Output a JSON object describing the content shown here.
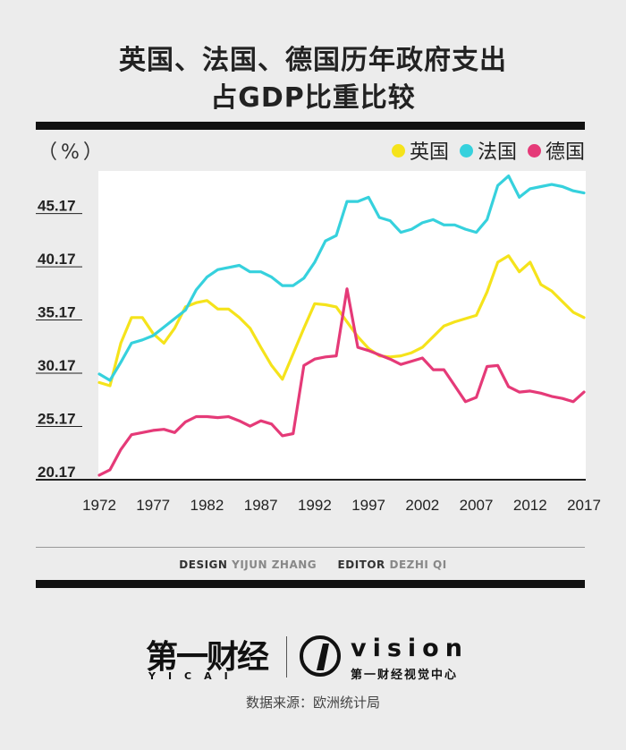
{
  "title_line1": "英国、法国、德国历年政府支出",
  "title_line2": "占GDP比重比较",
  "unit_label": "（%）",
  "credits": {
    "design_label": "DESIGN",
    "design_name": "YIJUN ZHANG",
    "editor_label": "EDITOR",
    "editor_name": "DEZHI QI"
  },
  "logo": {
    "yicai_cn": "第一财经",
    "yicai_en": "YICAI",
    "vision": "vision",
    "vision_cn": "第一财经视觉中心"
  },
  "source": "数据来源：欧洲统计局",
  "colors": {
    "uk": "#f5e31b",
    "fr": "#36d1dd",
    "de": "#e53a78"
  },
  "chart_data": {
    "type": "line",
    "title": "英国、法国、德国历年政府支出占GDP比重比较",
    "ylabel": "（%）",
    "xlabel": "",
    "xlim": [
      1972,
      2017
    ],
    "ylim": [
      20.17,
      49.17
    ],
    "x_ticks": [
      1972,
      1977,
      1982,
      1987,
      1992,
      1997,
      2002,
      2007,
      2012,
      2017
    ],
    "y_ticks": [
      "20.17",
      "25.17",
      "30.17",
      "35.17",
      "40.17",
      "45.17"
    ],
    "legend_position": "top-right",
    "series": [
      {
        "name": "英国",
        "key": "uk",
        "points": [
          [
            1972,
            29.3
          ],
          [
            1973,
            29.0
          ],
          [
            1974,
            33.0
          ],
          [
            1975,
            35.4
          ],
          [
            1976,
            35.4
          ],
          [
            1977,
            33.9
          ],
          [
            1978,
            33.0
          ],
          [
            1979,
            34.4
          ],
          [
            1980,
            36.4
          ],
          [
            1981,
            36.8
          ],
          [
            1982,
            37.0
          ],
          [
            1983,
            36.2
          ],
          [
            1984,
            36.2
          ],
          [
            1985,
            35.4
          ],
          [
            1986,
            34.4
          ],
          [
            1987,
            32.6
          ],
          [
            1988,
            30.9
          ],
          [
            1989,
            29.6
          ],
          [
            1990,
            32.0
          ],
          [
            1991,
            34.4
          ],
          [
            1992,
            36.7
          ],
          [
            1993,
            36.6
          ],
          [
            1994,
            36.4
          ],
          [
            1995,
            35.0
          ],
          [
            1996,
            33.6
          ],
          [
            1997,
            32.5
          ],
          [
            1998,
            31.8
          ],
          [
            1999,
            31.7
          ],
          [
            2000,
            31.8
          ],
          [
            2001,
            32.1
          ],
          [
            2002,
            32.6
          ],
          [
            2003,
            33.6
          ],
          [
            2004,
            34.6
          ],
          [
            2005,
            35.0
          ],
          [
            2006,
            35.3
          ],
          [
            2007,
            35.6
          ],
          [
            2008,
            37.8
          ],
          [
            2009,
            40.6
          ],
          [
            2010,
            41.2
          ],
          [
            2011,
            39.7
          ],
          [
            2012,
            40.6
          ],
          [
            2013,
            38.5
          ],
          [
            2014,
            37.9
          ],
          [
            2015,
            36.9
          ],
          [
            2016,
            35.9
          ],
          [
            2017,
            35.4
          ]
        ]
      },
      {
        "name": "法国",
        "key": "fr",
        "points": [
          [
            1972,
            30.1
          ],
          [
            1973,
            29.5
          ],
          [
            1974,
            31.2
          ],
          [
            1975,
            33.0
          ],
          [
            1976,
            33.3
          ],
          [
            1977,
            33.7
          ],
          [
            1978,
            34.5
          ],
          [
            1979,
            35.3
          ],
          [
            1980,
            36.1
          ],
          [
            1981,
            38.0
          ],
          [
            1982,
            39.2
          ],
          [
            1983,
            39.9
          ],
          [
            1984,
            40.1
          ],
          [
            1985,
            40.3
          ],
          [
            1986,
            39.7
          ],
          [
            1987,
            39.7
          ],
          [
            1988,
            39.2
          ],
          [
            1989,
            38.4
          ],
          [
            1990,
            38.4
          ],
          [
            1991,
            39.1
          ],
          [
            1992,
            40.6
          ],
          [
            1993,
            42.6
          ],
          [
            1994,
            43.1
          ],
          [
            1995,
            46.3
          ],
          [
            1996,
            46.3
          ],
          [
            1997,
            46.7
          ],
          [
            1998,
            44.8
          ],
          [
            1999,
            44.5
          ],
          [
            2000,
            43.4
          ],
          [
            2001,
            43.7
          ],
          [
            2002,
            44.3
          ],
          [
            2003,
            44.6
          ],
          [
            2004,
            44.1
          ],
          [
            2005,
            44.1
          ],
          [
            2006,
            43.7
          ],
          [
            2007,
            43.4
          ],
          [
            2008,
            44.6
          ],
          [
            2009,
            47.8
          ],
          [
            2010,
            48.7
          ],
          [
            2011,
            46.7
          ],
          [
            2012,
            47.5
          ],
          [
            2013,
            47.7
          ],
          [
            2014,
            47.9
          ],
          [
            2015,
            47.7
          ],
          [
            2016,
            47.3
          ],
          [
            2017,
            47.1
          ]
        ]
      },
      {
        "name": "德国",
        "key": "de",
        "points": [
          [
            1972,
            20.6
          ],
          [
            1973,
            21.1
          ],
          [
            1974,
            23.0
          ],
          [
            1975,
            24.4
          ],
          [
            1976,
            24.6
          ],
          [
            1977,
            24.8
          ],
          [
            1978,
            24.9
          ],
          [
            1979,
            24.6
          ],
          [
            1980,
            25.6
          ],
          [
            1981,
            26.1
          ],
          [
            1982,
            26.1
          ],
          [
            1983,
            26.0
          ],
          [
            1984,
            26.1
          ],
          [
            1985,
            25.7
          ],
          [
            1986,
            25.2
          ],
          [
            1987,
            25.7
          ],
          [
            1988,
            25.4
          ],
          [
            1989,
            24.3
          ],
          [
            1990,
            24.5
          ],
          [
            1991,
            30.9
          ],
          [
            1992,
            31.5
          ],
          [
            1993,
            31.7
          ],
          [
            1994,
            31.8
          ],
          [
            1995,
            38.1
          ],
          [
            1996,
            32.6
          ],
          [
            1997,
            32.3
          ],
          [
            1998,
            31.9
          ],
          [
            1999,
            31.5
          ],
          [
            2000,
            31.0
          ],
          [
            2001,
            31.3
          ],
          [
            2002,
            31.6
          ],
          [
            2003,
            30.5
          ],
          [
            2004,
            30.5
          ],
          [
            2005,
            29.0
          ],
          [
            2006,
            27.5
          ],
          [
            2007,
            27.9
          ],
          [
            2008,
            30.8
          ],
          [
            2009,
            30.9
          ],
          [
            2010,
            28.9
          ],
          [
            2011,
            28.4
          ],
          [
            2012,
            28.5
          ],
          [
            2013,
            28.3
          ],
          [
            2014,
            28.0
          ],
          [
            2015,
            27.8
          ],
          [
            2016,
            27.5
          ],
          [
            2017,
            28.4
          ]
        ]
      }
    ]
  }
}
